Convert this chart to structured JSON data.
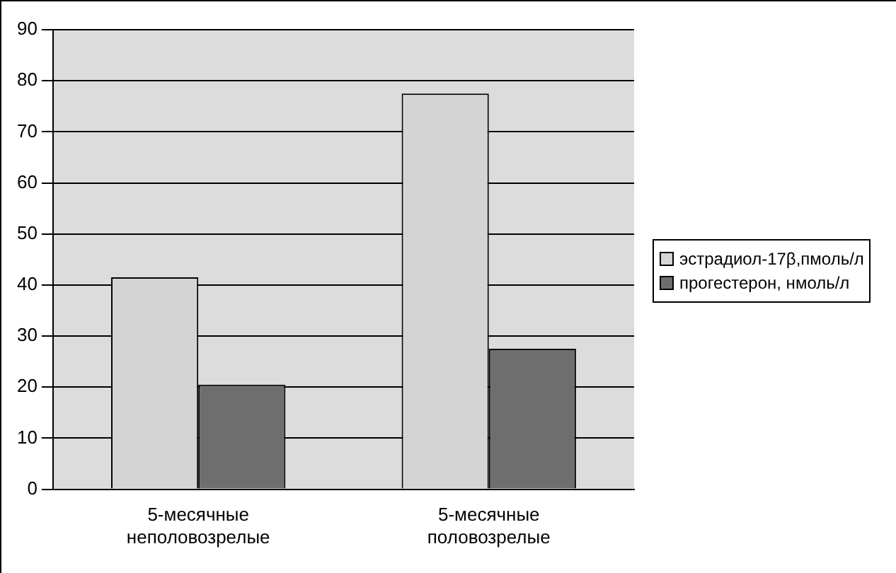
{
  "chart_data": {
    "type": "bar",
    "categories": [
      "5-месячные неполовозрелые",
      "5-месячные половозрелые"
    ],
    "series": [
      {
        "name": "эстрадиол-17β,пмоль/л",
        "color": "#d4d4d4",
        "values": [
          41.5,
          77.5
        ]
      },
      {
        "name": "прогестерон, нмоль/л",
        "color": "#6e6e6e",
        "values": [
          20.5,
          27.5
        ]
      }
    ],
    "ylim": [
      0,
      90
    ],
    "yticks": [
      0,
      10,
      20,
      30,
      40,
      50,
      60,
      70,
      80,
      90
    ],
    "grid": "y",
    "legend": "right"
  }
}
